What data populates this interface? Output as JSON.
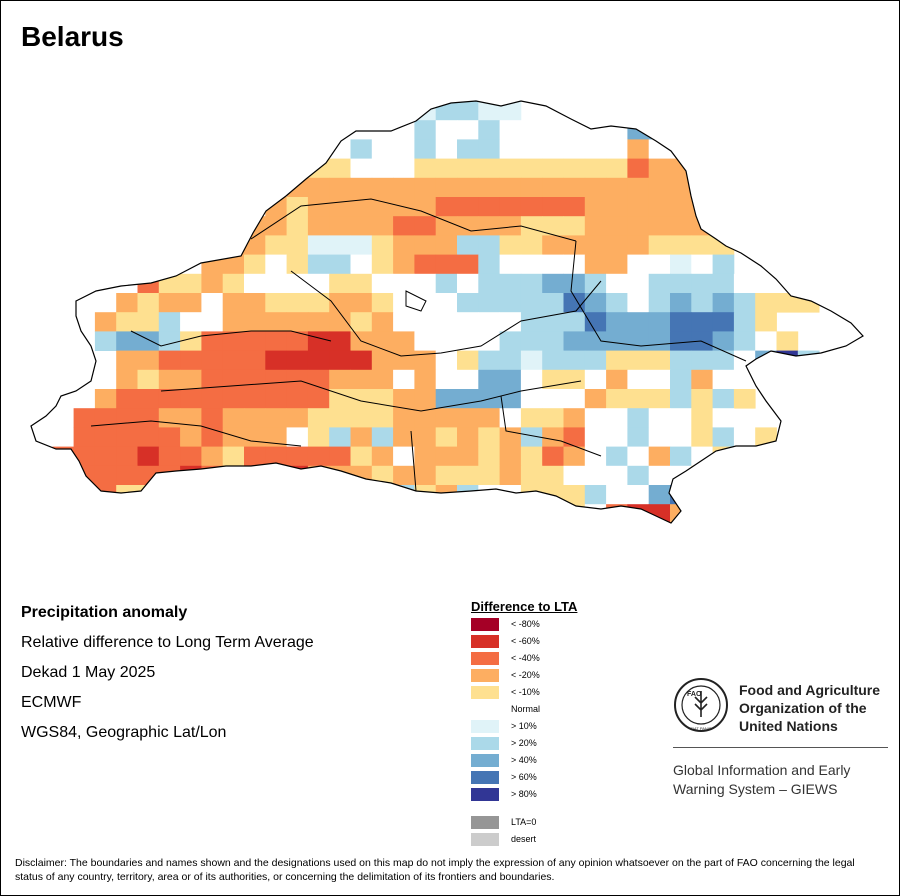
{
  "map_title": "Belarus",
  "info": {
    "heading": "Precipitation anomaly",
    "line1": "Relative difference to Long Term Average",
    "line2": "Dekad 1 May 2025",
    "line3": "ECMWF",
    "line4": "WGS84, Geographic Lat/Lon"
  },
  "legend": {
    "title": "Difference to LTA",
    "items": [
      {
        "label": "< -80%",
        "color": "#a50026"
      },
      {
        "label": "< -60%",
        "color": "#d73027"
      },
      {
        "label": "< -40%",
        "color": "#f46d43"
      },
      {
        "label": "< -20%",
        "color": "#fdae61"
      },
      {
        "label": "< -10%",
        "color": "#fee090"
      },
      {
        "label": "Normal",
        "color": "#ffffff"
      },
      {
        "label": "> 10%",
        "color": "#e0f3f8"
      },
      {
        "label": "> 20%",
        "color": "#abd9e9"
      },
      {
        "label": "> 40%",
        "color": "#74add1"
      },
      {
        "label": "> 60%",
        "color": "#4575b4"
      },
      {
        "label": "> 80%",
        "color": "#313695"
      },
      {
        "label": "LTA=0",
        "color": "#969696"
      },
      {
        "label": "desert",
        "color": "#cccccc"
      }
    ]
  },
  "fao": {
    "logo_text": "FAO",
    "logo_motto": "FIAT PANIS",
    "name_line1": "Food and Agriculture",
    "name_line2": "Organization of the",
    "name_line3": "United Nations",
    "giews_line1": "Global Information and Early",
    "giews_line2": "Warning System – GIEWS"
  },
  "disclaimer": "Disclaimer: The boundaries and names shown and the designations used on this map do not imply the expression of any opinion whatsoever on the part of FAO concerning the legal status of any country, territory, area or of its authorities, or concerning the delimitation of its frontiers and boundaries.",
  "map_grid": {
    "palette": {
      "a": "#a50026",
      "r": "#d73027",
      "o": "#f46d43",
      "g": "#fdae61",
      "y": "#fee090",
      "n": "#ffffff",
      "c": "#e0f3f8",
      "l": "#abd9e9",
      "m": "#74add1",
      "b": "#4575b4",
      "d": "#313695"
    },
    "rows": [
      "..................cllcc...............",
      ".............nnnnnlnnlnnnnnnmmn.......",
      ".............nnlnnlnllnnnnnngnnnn.....",
      ".............yynnnyyyyyyyyyyoggy......",
      "............ggggggggggggggggggggy.....",
      "...........gyggggggoooooooggggggl.....",
      "..........ggyggggooggggyyyggggggy.....",
      ".........ggyycccygggllyygggggyyyy.....",
      "........ggynyllnygooolnnnnggnncnl.....",
      ".....oyygynnnnyynnnlnlllmmlnnlllln....",
      "....gyggnggyyyggynnnlllllbmlnlmlmlyyy.",
      "...gyylnnggggggygnnnnnnlllbmmmbbbly...",
      "...lmmlyooooorrgggnnnnlllmmmmmbbmlny..",
      "....ggooooorrrrrgggnyllclllyyylllnmdl.",
      "....gyggoooooogggngnnmmnyyngnnlgnnn...",
      "...gooooooooooyyyggmmmmnnngyyylyly....",
      "..ooooggoggggyyyygggggnyygnnlnnyn.....",
      "..ooooogogggnylglggygyglgonnlnnylny...",
      ".ooooroogyoooooygngggygyognlnglnylgg..",
      ".ooooooroooorgggyggyyygyynnnlnnyyyooo.",
      "..ooyyyygooooooynlyglnnyyylnnmbnnn....",
      "...oooooyyyyygggggnlnnyygynorrgn......",
      "..........................yny.nn......"
    ]
  }
}
